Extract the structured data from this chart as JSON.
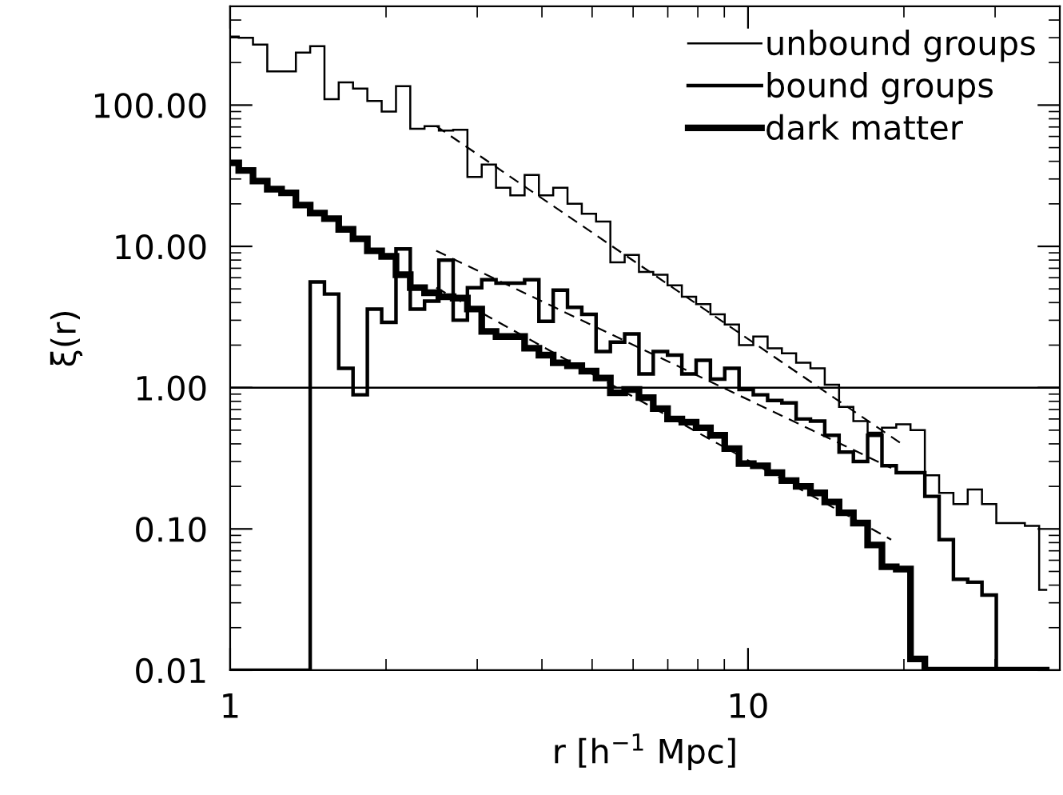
{
  "chart_data": {
    "type": "step",
    "xlabel": "r [h$^{−1}$ Mpc]",
    "ylabel": "ξ(r)",
    "log": "xy",
    "xlim": [
      1,
      40
    ],
    "ylim": [
      0.01,
      500
    ],
    "xticks": [
      1,
      10
    ],
    "yticks": [
      {
        "value": 0.01,
        "label": "0.01"
      },
      {
        "value": 0.1,
        "label": "0.10"
      },
      {
        "value": 1,
        "label": "1.00"
      },
      {
        "value": 10,
        "label": "10.00"
      },
      {
        "value": 100,
        "label": "100.00"
      }
    ],
    "grid": false,
    "legend": "top right",
    "x": [
      1.006,
      1.072,
      1.142,
      1.217,
      1.297,
      1.382,
      1.473,
      1.569,
      1.672,
      1.782,
      1.899,
      2.024,
      2.157,
      2.298,
      2.449,
      2.61,
      2.781,
      2.963,
      3.158,
      3.365,
      3.586,
      3.821,
      4.072,
      4.339,
      4.624,
      4.927,
      5.25,
      5.595,
      5.962,
      6.353,
      6.77,
      7.214,
      7.688,
      8.192,
      8.73,
      9.303,
      9.914,
      10.56,
      11.26,
      11.99,
      12.78,
      13.62,
      14.51,
      15.47,
      16.48,
      17.56,
      18.72,
      19.94,
      21.25,
      22.65,
      24.13,
      25.72,
      27.4,
      29.2,
      31.12,
      33.16,
      35.33,
      37.65
    ],
    "series": [
      {
        "name": "unbound groups",
        "color": "#000000",
        "values": [
          305,
          300,
          268,
          173,
          173,
          235,
          261,
          110,
          145,
          131,
          107,
          90,
          136,
          68,
          71,
          66,
          67,
          31,
          38,
          26,
          23,
          32,
          23,
          26,
          20,
          17,
          15,
          7.7,
          8.7,
          6.6,
          6.3,
          5.3,
          4.4,
          3.9,
          3.3,
          2.8,
          2.0,
          2.3,
          1.9,
          1.75,
          1.5,
          1.37,
          1.05,
          0.73,
          0.58,
          0.48,
          0.52,
          0.55,
          0.5,
          0.24,
          0.18,
          0.15,
          0.19,
          0.15,
          0.11,
          0.11,
          0.105,
          0.037
        ]
      },
      {
        "name": "bound groups",
        "color": "#000000",
        "values": [
          0.01,
          0.01,
          0.01,
          0.01,
          0.01,
          0.01,
          5.6,
          4.6,
          1.37,
          0.89,
          3.6,
          2.9,
          9.6,
          3.6,
          4.1,
          8.0,
          3.0,
          5.1,
          5.8,
          5.5,
          5.5,
          5.8,
          2.95,
          4.9,
          3.7,
          3.3,
          1.8,
          2.1,
          2.4,
          1.25,
          1.8,
          1.7,
          1.25,
          1.56,
          1.15,
          1.37,
          0.97,
          0.89,
          0.81,
          0.78,
          0.6,
          0.58,
          0.46,
          0.35,
          0.3,
          0.46,
          0.28,
          0.25,
          0.25,
          0.17,
          0.084,
          0.044,
          0.042,
          0.034,
          0.01,
          0.01,
          0.01,
          0.01
        ]
      },
      {
        "name": "dark matter",
        "color": "#000000",
        "values": [
          39,
          34.5,
          29,
          25.4,
          23.9,
          19.6,
          17.2,
          15.7,
          13.2,
          11.3,
          9.3,
          8.5,
          6.3,
          5.1,
          4.7,
          4.4,
          4.3,
          3.6,
          2.5,
          2.3,
          2.3,
          1.9,
          1.7,
          1.5,
          1.43,
          1.31,
          1.17,
          0.92,
          0.97,
          0.85,
          0.71,
          0.6,
          0.57,
          0.52,
          0.46,
          0.37,
          0.29,
          0.28,
          0.25,
          0.22,
          0.2,
          0.18,
          0.155,
          0.13,
          0.11,
          0.077,
          0.054,
          0.052,
          0.012,
          0.01,
          0.01,
          0.01,
          0.01,
          0.01,
          0.01,
          0.01,
          0.01,
          0.01
        ]
      },
      {
        "type": "line",
        "line_style": "dashed",
        "color": "#000000",
        "x": [
          2.5,
          19.8
        ],
        "values": [
          71,
          0.4
        ]
      },
      {
        "type": "line",
        "line_style": "dashed",
        "color": "#000000",
        "x": [
          2.5,
          18.9
        ],
        "values": [
          9.3,
          0.27
        ]
      },
      {
        "type": "line",
        "line_style": "dashed",
        "color": "#000000",
        "x": [
          2.5,
          18.9
        ],
        "values": [
          5.1,
          0.084
        ]
      }
    ],
    "ref_lines": [
      {
        "axis": "y",
        "value": 1,
        "color": "#000000"
      }
    ]
  }
}
